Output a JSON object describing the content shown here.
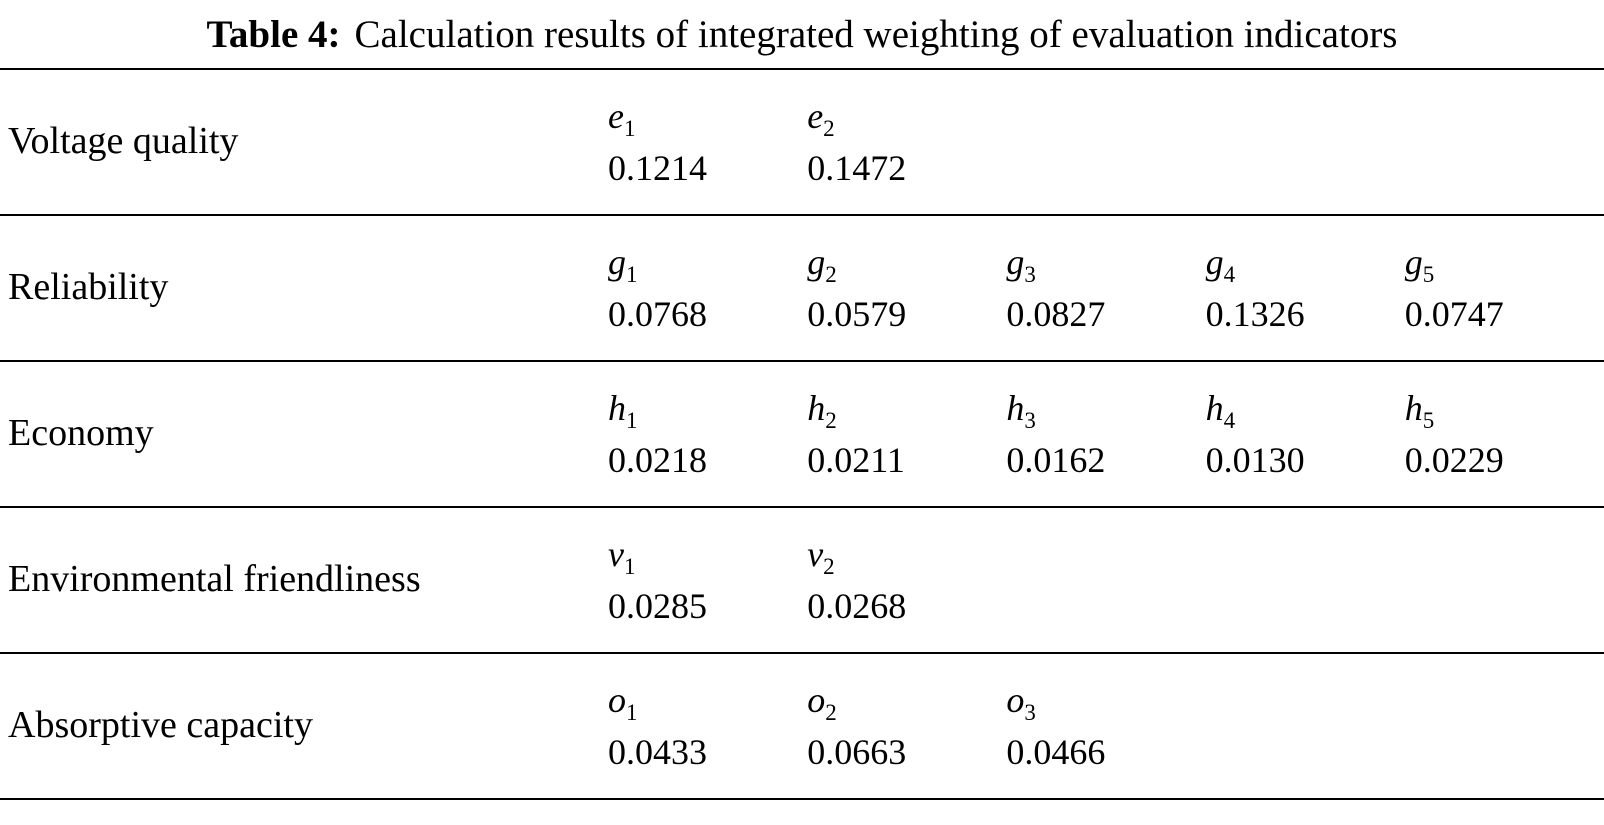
{
  "caption": {
    "label": "Table 4:",
    "text": "Calculation results of integrated weighting of evaluation indicators"
  },
  "rows": [
    {
      "category": "Voltage quality",
      "cells": [
        {
          "sym": "e",
          "sub": "1",
          "value": "0.1214"
        },
        {
          "sym": "e",
          "sub": "2",
          "value": "0.1472"
        }
      ]
    },
    {
      "category": "Reliability",
      "cells": [
        {
          "sym": "g",
          "sub": "1",
          "value": "0.0768"
        },
        {
          "sym": "g",
          "sub": "2",
          "value": "0.0579"
        },
        {
          "sym": "g",
          "sub": "3",
          "value": "0.0827"
        },
        {
          "sym": "g",
          "sub": "4",
          "value": "0.1326"
        },
        {
          "sym": "g",
          "sub": "5",
          "value": "0.0747"
        }
      ]
    },
    {
      "category": "Economy",
      "cells": [
        {
          "sym": "h",
          "sub": "1",
          "value": "0.0218"
        },
        {
          "sym": "h",
          "sub": "2",
          "value": "0.0211"
        },
        {
          "sym": "h",
          "sub": "3",
          "value": "0.0162"
        },
        {
          "sym": "h",
          "sub": "4",
          "value": "0.0130"
        },
        {
          "sym": "h",
          "sub": "5",
          "value": "0.0229"
        }
      ]
    },
    {
      "category": "Environmental friendliness",
      "cells": [
        {
          "sym": "v",
          "sub": "1",
          "value": "0.0285"
        },
        {
          "sym": "v",
          "sub": "2",
          "value": "0.0268"
        }
      ]
    },
    {
      "category": "Absorptive capacity",
      "cells": [
        {
          "sym": "o",
          "sub": "1",
          "value": "0.0433"
        },
        {
          "sym": "o",
          "sub": "2",
          "value": "0.0663"
        },
        {
          "sym": "o",
          "sub": "3",
          "value": "0.0466"
        }
      ]
    }
  ]
}
